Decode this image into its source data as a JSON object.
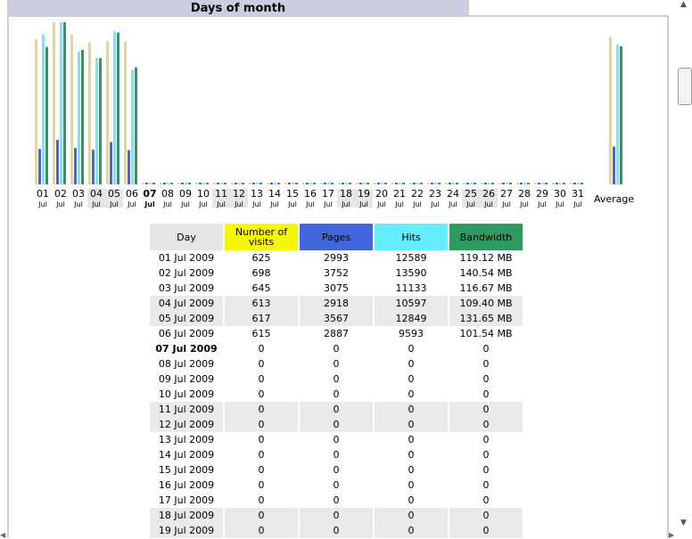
{
  "section": {
    "title": "Days of month"
  },
  "colors": {
    "visits": "#e4d98a",
    "pages": "#4466dd",
    "hits": "#66eeff",
    "bandwidth": "#2e9960",
    "frame": "#cccde0"
  },
  "legend": {
    "visits": "yellow",
    "pages": "blue",
    "hits": "cyan",
    "bandwidth": "green"
  },
  "chart_data": {
    "type": "bar",
    "categories": [
      "01",
      "02",
      "03",
      "04",
      "05",
      "06",
      "07",
      "08",
      "09",
      "10",
      "11",
      "12",
      "13",
      "14",
      "15",
      "16",
      "17",
      "18",
      "19",
      "20",
      "21",
      "22",
      "23",
      "24",
      "25",
      "26",
      "27",
      "28",
      "29",
      "30",
      "31",
      "Average"
    ],
    "category_months": [
      "Jul",
      "Jul",
      "Jul",
      "Jul",
      "Jul",
      "Jul",
      "Jul",
      "Jul",
      "Jul",
      "Jul",
      "Jul",
      "Jul",
      "Jul",
      "Jul",
      "Jul",
      "Jul",
      "Jul",
      "Jul",
      "Jul",
      "Jul",
      "Jul",
      "Jul",
      "Jul",
      "Jul",
      "Jul",
      "Jul",
      "Jul",
      "Jul",
      "Jul",
      "Jul",
      "Jul"
    ],
    "weekend_days": [
      "04",
      "05",
      "11",
      "12",
      "18",
      "19",
      "25",
      "26"
    ],
    "today": "07",
    "series": [
      {
        "name": "Number of visits",
        "values": [
          625,
          698,
          645,
          613,
          617,
          615,
          0,
          0,
          0,
          0,
          0,
          0,
          0,
          0,
          0,
          0,
          0,
          0,
          0,
          0,
          0,
          0,
          0,
          0,
          0,
          0,
          0,
          0,
          0,
          0,
          0,
          635
        ]
      },
      {
        "name": "Pages",
        "values": [
          2993,
          3752,
          3075,
          2918,
          3567,
          2887,
          0,
          0,
          0,
          0,
          0,
          0,
          0,
          0,
          0,
          0,
          0,
          0,
          0,
          0,
          0,
          0,
          0,
          0,
          0,
          0,
          0,
          0,
          0,
          0,
          0,
          3199
        ]
      },
      {
        "name": "Hits",
        "values": [
          12589,
          13590,
          11133,
          10597,
          12849,
          9593,
          0,
          0,
          0,
          0,
          0,
          0,
          0,
          0,
          0,
          0,
          0,
          0,
          0,
          0,
          0,
          0,
          0,
          0,
          0,
          0,
          0,
          0,
          0,
          0,
          0,
          11725
        ]
      },
      {
        "name": "Bandwidth",
        "values": [
          119.12,
          140.54,
          116.67,
          109.4,
          131.65,
          101.54,
          0,
          0,
          0,
          0,
          0,
          0,
          0,
          0,
          0,
          0,
          0,
          0,
          0,
          0,
          0,
          0,
          0,
          0,
          0,
          0,
          0,
          0,
          0,
          0,
          0,
          119.82
        ]
      }
    ],
    "xlabel": "",
    "ylabel": ""
  },
  "table": {
    "headers": {
      "day": "Day",
      "visits": "Number of visits",
      "pages": "Pages",
      "hits": "Hits",
      "bandwidth": "Bandwidth"
    },
    "rows": [
      {
        "day": "01 Jul 2009",
        "visits": "625",
        "pages": "2993",
        "hits": "12589",
        "bandwidth": "119.12 MB",
        "weekend": false
      },
      {
        "day": "02 Jul 2009",
        "visits": "698",
        "pages": "3752",
        "hits": "13590",
        "bandwidth": "140.54 MB",
        "weekend": false
      },
      {
        "day": "03 Jul 2009",
        "visits": "645",
        "pages": "3075",
        "hits": "11133",
        "bandwidth": "116.67 MB",
        "weekend": false
      },
      {
        "day": "04 Jul 2009",
        "visits": "613",
        "pages": "2918",
        "hits": "10597",
        "bandwidth": "109.40 MB",
        "weekend": true
      },
      {
        "day": "05 Jul 2009",
        "visits": "617",
        "pages": "3567",
        "hits": "12849",
        "bandwidth": "131.65 MB",
        "weekend": true
      },
      {
        "day": "06 Jul 2009",
        "visits": "615",
        "pages": "2887",
        "hits": "9593",
        "bandwidth": "101.54 MB",
        "weekend": false
      },
      {
        "day": "07 Jul 2009",
        "visits": "0",
        "pages": "0",
        "hits": "0",
        "bandwidth": "0",
        "weekend": false,
        "today": true
      },
      {
        "day": "08 Jul 2009",
        "visits": "0",
        "pages": "0",
        "hits": "0",
        "bandwidth": "0",
        "weekend": false
      },
      {
        "day": "09 Jul 2009",
        "visits": "0",
        "pages": "0",
        "hits": "0",
        "bandwidth": "0",
        "weekend": false
      },
      {
        "day": "10 Jul 2009",
        "visits": "0",
        "pages": "0",
        "hits": "0",
        "bandwidth": "0",
        "weekend": false
      },
      {
        "day": "11 Jul 2009",
        "visits": "0",
        "pages": "0",
        "hits": "0",
        "bandwidth": "0",
        "weekend": true
      },
      {
        "day": "12 Jul 2009",
        "visits": "0",
        "pages": "0",
        "hits": "0",
        "bandwidth": "0",
        "weekend": true
      },
      {
        "day": "13 Jul 2009",
        "visits": "0",
        "pages": "0",
        "hits": "0",
        "bandwidth": "0",
        "weekend": false
      },
      {
        "day": "14 Jul 2009",
        "visits": "0",
        "pages": "0",
        "hits": "0",
        "bandwidth": "0",
        "weekend": false
      },
      {
        "day": "15 Jul 2009",
        "visits": "0",
        "pages": "0",
        "hits": "0",
        "bandwidth": "0",
        "weekend": false
      },
      {
        "day": "16 Jul 2009",
        "visits": "0",
        "pages": "0",
        "hits": "0",
        "bandwidth": "0",
        "weekend": false
      },
      {
        "day": "17 Jul 2009",
        "visits": "0",
        "pages": "0",
        "hits": "0",
        "bandwidth": "0",
        "weekend": false
      },
      {
        "day": "18 Jul 2009",
        "visits": "0",
        "pages": "0",
        "hits": "0",
        "bandwidth": "0",
        "weekend": true
      },
      {
        "day": "19 Jul 2009",
        "visits": "0",
        "pages": "0",
        "hits": "0",
        "bandwidth": "0",
        "weekend": true
      }
    ]
  },
  "scrollbar": {
    "up_icon": "scroll-up-arrow-icon",
    "down_icon": "scroll-down-arrow-icon"
  }
}
